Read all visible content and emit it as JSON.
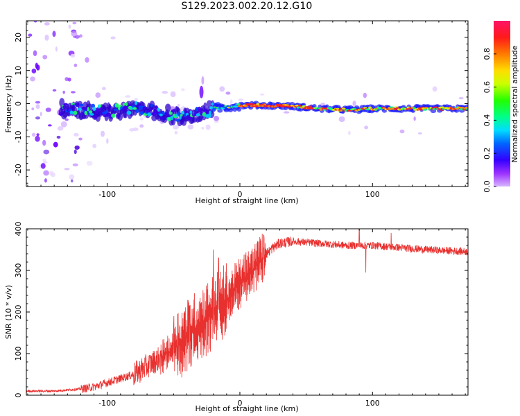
{
  "title": "S129.2023.002.20.12.G10",
  "colors": {
    "snr_line": "#e8302e",
    "frame": "#000000",
    "background": "#ffffff"
  },
  "chart_data": [
    {
      "type": "heatmap",
      "name": "spectrogram",
      "xlabel": "Height of straight line (km)",
      "ylabel": "Frequency (Hz)",
      "xlim": [
        -161,
        172
      ],
      "ylim": [
        -25,
        25
      ],
      "x_ticks": [
        -100,
        0,
        100
      ],
      "x_tick_labels": [
        "-100",
        "0",
        "100"
      ],
      "y_ticks": [
        20,
        10,
        0,
        -10,
        -20
      ],
      "y_tick_labels": [
        "20",
        "10",
        "0",
        "-10",
        "-20"
      ],
      "colorbar": {
        "label": "Normalized spectral amplitude",
        "range": [
          0,
          1
        ],
        "ticks": [
          0.0,
          0.2,
          0.4,
          0.6,
          0.8
        ],
        "tick_labels": [
          "0.0",
          "0.2",
          "0.4",
          "0.6",
          "0.8"
        ],
        "colormap": "gist_rainbow"
      },
      "main_band": {
        "x_start": -135,
        "x_end": 172,
        "center_frequency_points": [
          [
            -135,
            -1.5
          ],
          [
            -120,
            -2
          ],
          [
            -100,
            -2.5
          ],
          [
            -80,
            -1.5
          ],
          [
            -70,
            -2
          ],
          [
            -50,
            -3.5
          ],
          [
            -40,
            -4
          ],
          [
            -30,
            -3
          ],
          [
            -20,
            -1.5
          ],
          [
            -10,
            -1
          ],
          [
            0,
            -0.5
          ],
          [
            20,
            -0.5
          ],
          [
            40,
            -0.8
          ],
          [
            60,
            -1.5
          ],
          [
            80,
            -1.8
          ],
          [
            90,
            -1.8
          ],
          [
            100,
            -1.5
          ],
          [
            120,
            -1.5
          ],
          [
            140,
            -1.5
          ],
          [
            172,
            -1.5
          ]
        ]
      }
    },
    {
      "type": "line",
      "name": "snr",
      "xlabel": "Height of straight line (km)",
      "ylabel": "SNR (10 * v/v)",
      "xlim": [
        -161,
        172
      ],
      "ylim": [
        0,
        400
      ],
      "x_ticks": [
        -100,
        0,
        100
      ],
      "x_tick_labels": [
        "-100",
        "0",
        "100"
      ],
      "y_ticks": [
        0,
        100,
        200,
        300,
        400
      ],
      "y_tick_labels": [
        "0",
        "100",
        "200",
        "300",
        "400"
      ],
      "trend_x": [
        -161,
        -140,
        -120,
        -110,
        -100,
        -90,
        -80,
        -70,
        -60,
        -50,
        -40,
        -30,
        -20,
        -10,
        0,
        10,
        20,
        25,
        30,
        40,
        60,
        80,
        100,
        120,
        140,
        172
      ],
      "trend_y": [
        10,
        10,
        15,
        20,
        30,
        40,
        50,
        70,
        90,
        110,
        140,
        170,
        200,
        230,
        270,
        300,
        340,
        355,
        365,
        370,
        365,
        360,
        360,
        355,
        350,
        345
      ],
      "spikes": [
        {
          "x": -20,
          "y": 350
        },
        {
          "x": -16,
          "y": 330
        },
        {
          "x": -38,
          "y": 215
        },
        {
          "x": -50,
          "y": 170
        },
        {
          "x": 6,
          "y": 300
        },
        {
          "x": 18,
          "y": 385
        },
        {
          "x": 90,
          "y": 400
        },
        {
          "x": 95,
          "y": 295
        },
        {
          "x": 114,
          "y": 390
        }
      ]
    }
  ]
}
